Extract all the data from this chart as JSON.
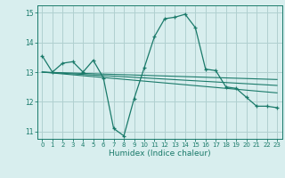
{
  "title": "",
  "xlabel": "Humidex (Indice chaleur)",
  "bg_color": "#d8eeee",
  "grid_color": "#b0d0d0",
  "line_color": "#1a7a6a",
  "xlim": [
    -0.5,
    23.5
  ],
  "ylim": [
    10.75,
    15.25
  ],
  "yticks": [
    11,
    12,
    13,
    14,
    15
  ],
  "xticks": [
    0,
    1,
    2,
    3,
    4,
    5,
    6,
    7,
    8,
    9,
    10,
    11,
    12,
    13,
    14,
    15,
    16,
    17,
    18,
    19,
    20,
    21,
    22,
    23
  ],
  "series1": {
    "x": [
      0,
      1,
      2,
      3,
      4,
      5,
      6,
      7,
      8,
      9,
      10,
      11,
      12,
      13,
      14,
      15,
      16,
      17,
      18,
      19,
      20,
      21,
      22,
      23
    ],
    "y": [
      13.55,
      13.0,
      13.3,
      13.35,
      13.0,
      13.4,
      12.8,
      11.1,
      10.85,
      12.1,
      13.15,
      14.2,
      14.8,
      14.85,
      14.95,
      14.5,
      13.1,
      13.05,
      12.5,
      12.45,
      12.15,
      11.85,
      11.85,
      11.8
    ]
  },
  "series2": {
    "x": [
      0,
      23
    ],
    "y": [
      13.0,
      12.3
    ]
  },
  "series3": {
    "x": [
      0,
      23
    ],
    "y": [
      13.0,
      12.55
    ]
  },
  "series4": {
    "x": [
      0,
      23
    ],
    "y": [
      13.0,
      12.75
    ]
  }
}
